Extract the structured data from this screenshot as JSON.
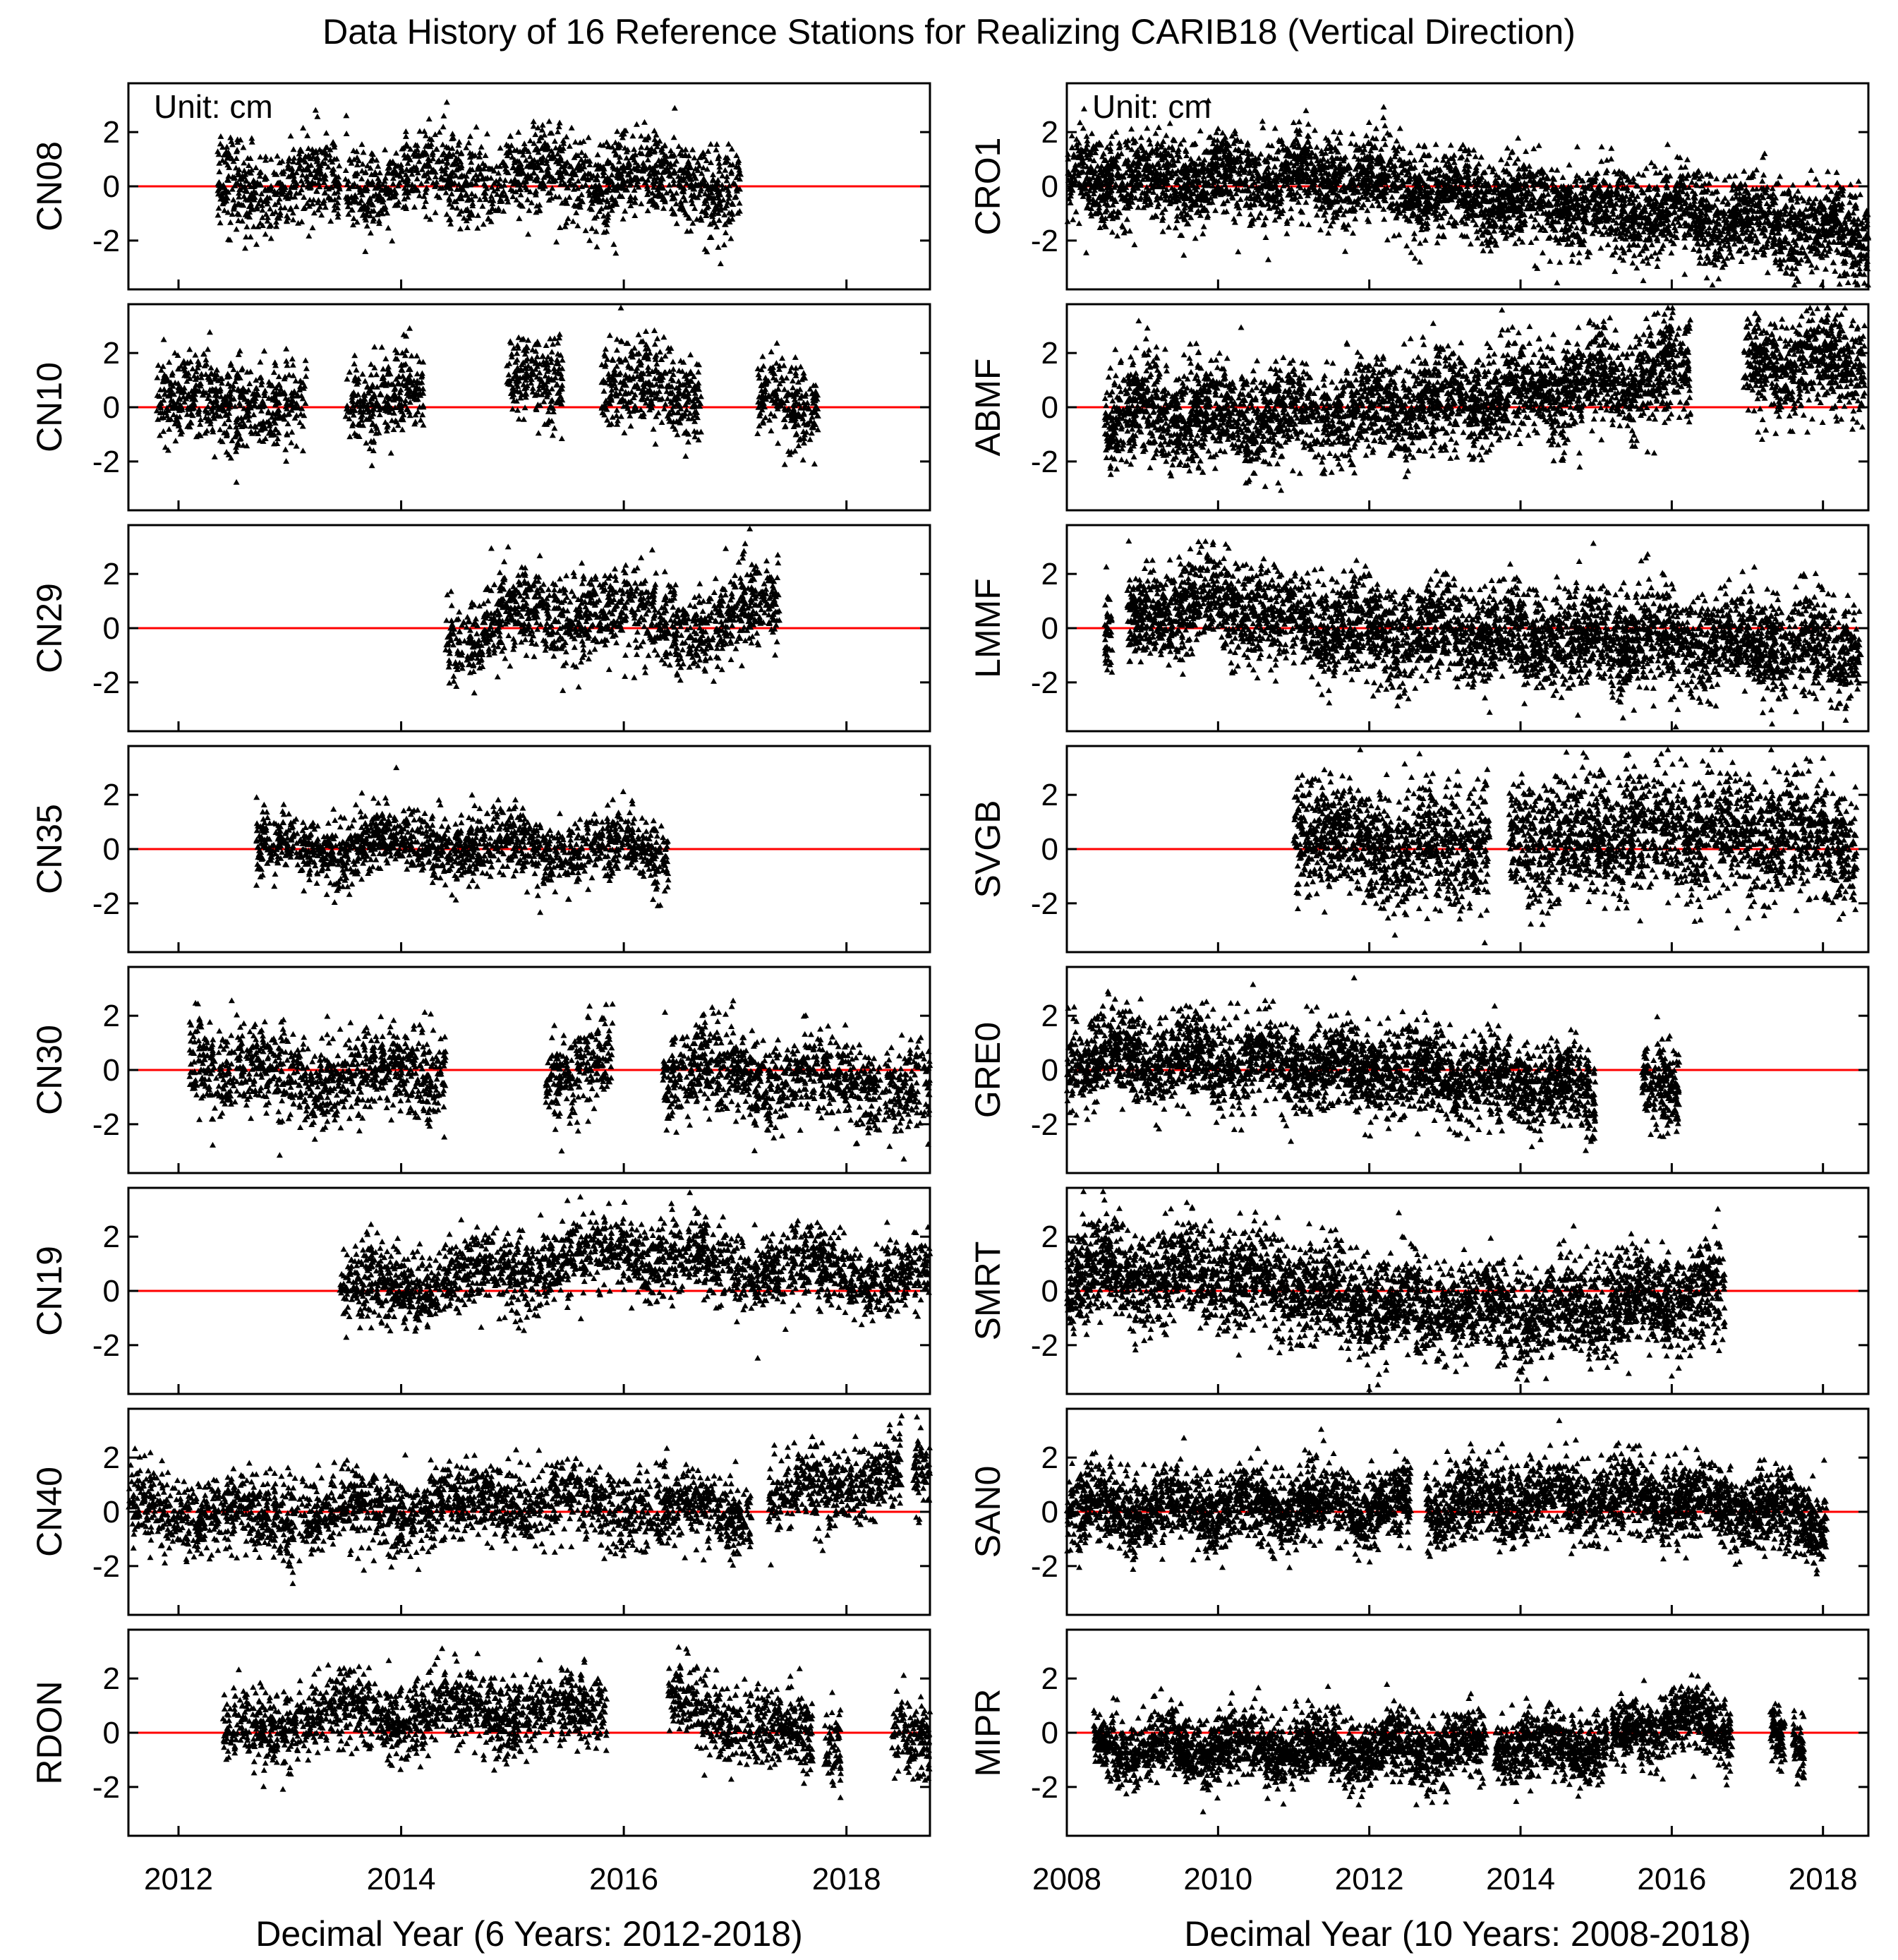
{
  "title": "Data History of 16 Reference Stations for Realizing CARIB18 (Vertical Direction)",
  "chart_data": {
    "type": "scatter",
    "columns": [
      {
        "xlabel": "Decimal Year (6 Years: 2012-2018)",
        "xlim": [
          2011.55,
          2018.75
        ],
        "xticks": [
          2012,
          2014,
          2016,
          2018
        ],
        "panels": [
          {
            "station": "CN08",
            "unit_note": "Unit: cm",
            "segments": [
              [
                2012.35,
                2013.45
              ],
              [
                2013.5,
                2017.05
              ]
            ],
            "mean": [
              [
                2012.3,
                0.0
              ],
              [
                2014.0,
                0.2
              ],
              [
                2016.0,
                0.4
              ],
              [
                2017.0,
                0.0
              ]
            ],
            "spread": 0.8
          },
          {
            "station": "CN10",
            "unit_note": "",
            "segments": [
              [
                2011.8,
                2013.15
              ],
              [
                2013.5,
                2014.2
              ],
              [
                2014.95,
                2015.45
              ],
              [
                2015.8,
                2016.7
              ],
              [
                2017.2,
                2017.75
              ]
            ],
            "mean": [
              [
                2011.8,
                0.3
              ],
              [
                2013.0,
                0.0
              ],
              [
                2015.2,
                0.9
              ],
              [
                2016.4,
                0.7
              ],
              [
                2017.75,
                0.0
              ]
            ],
            "spread": 0.8
          },
          {
            "station": "CN29",
            "unit_note": "",
            "segments": [
              [
                2014.4,
                2017.4
              ]
            ],
            "mean": [
              [
                2014.4,
                -0.5
              ],
              [
                2015.2,
                0.5
              ],
              [
                2016.3,
                0.5
              ],
              [
                2016.8,
                -0.3
              ],
              [
                2017.4,
                1.2
              ]
            ],
            "spread": 0.8
          },
          {
            "station": "CN35",
            "unit_note": "",
            "segments": [
              [
                2012.7,
                2016.4
              ]
            ],
            "mean": [
              [
                2012.7,
                0.0
              ],
              [
                2014.3,
                0.2
              ],
              [
                2016.4,
                -0.1
              ]
            ],
            "spread": 0.6
          },
          {
            "station": "CN30",
            "unit_note": "",
            "segments": [
              [
                2012.1,
                2014.4
              ],
              [
                2015.3,
                2015.9
              ],
              [
                2016.35,
                2018.75
              ]
            ],
            "mean": [
              [
                2012.1,
                0.5
              ],
              [
                2013.0,
                -0.5
              ],
              [
                2014.4,
                0.0
              ],
              [
                2016.5,
                0.0
              ],
              [
                2018.75,
                -0.8
              ]
            ],
            "spread": 0.8
          },
          {
            "station": "CN19",
            "unit_note": "",
            "segments": [
              [
                2013.45,
                2018.75
              ]
            ],
            "mean": [
              [
                2013.45,
                0.0
              ],
              [
                2014.5,
                0.4
              ],
              [
                2016.0,
                1.5
              ],
              [
                2016.8,
                0.9
              ],
              [
                2018.75,
                0.5
              ]
            ],
            "spread": 0.7
          },
          {
            "station": "CN40",
            "unit_note": "",
            "segments": [
              [
                2011.55,
                2017.15
              ],
              [
                2017.3,
                2018.5
              ],
              [
                2018.6,
                2018.75
              ]
            ],
            "mean": [
              [
                2011.55,
                0.2
              ],
              [
                2012.8,
                -0.3
              ],
              [
                2015.0,
                0.4
              ],
              [
                2017.0,
                0.0
              ],
              [
                2018.2,
                1.3
              ]
            ],
            "spread": 0.7
          },
          {
            "station": "RDON",
            "unit_note": "",
            "segments": [
              [
                2012.4,
                2015.85
              ],
              [
                2016.4,
                2017.7
              ],
              [
                2017.8,
                2017.95
              ],
              [
                2018.4,
                2018.75
              ]
            ],
            "mean": [
              [
                2012.4,
                0.0
              ],
              [
                2013.5,
                0.7
              ],
              [
                2015.5,
                0.8
              ],
              [
                2016.5,
                1.0
              ],
              [
                2017.7,
                -0.3
              ],
              [
                2018.75,
                -0.5
              ]
            ],
            "spread": 0.7
          }
        ]
      },
      {
        "xlabel": "Decimal Year (10 Years: 2008-2018)",
        "xlim": [
          2008.0,
          2018.6
        ],
        "xticks": [
          2008,
          2010,
          2012,
          2014,
          2016,
          2018
        ],
        "panels": [
          {
            "station": "CRO1",
            "unit_note": "Unit: cm",
            "segments": [
              [
                2008.0,
                2018.6
              ]
            ],
            "mean": [
              [
                2008.0,
                0.3
              ],
              [
                2011.5,
                0.3
              ],
              [
                2014.0,
                -0.6
              ],
              [
                2017.5,
                -1.4
              ],
              [
                2018.6,
                -1.8
              ]
            ],
            "spread": 0.8
          },
          {
            "station": "ABMF",
            "unit_note": "",
            "segments": [
              [
                2008.5,
                2016.25
              ],
              [
                2016.95,
                2018.55
              ]
            ],
            "mean": [
              [
                2008.5,
                -0.2
              ],
              [
                2011.0,
                -0.4
              ],
              [
                2014.0,
                0.5
              ],
              [
                2016.25,
                1.4
              ],
              [
                2018.55,
                1.7
              ]
            ],
            "spread": 0.9
          },
          {
            "station": "LMMF",
            "unit_note": "",
            "segments": [
              [
                2008.5,
                2008.6
              ],
              [
                2008.8,
                2018.5
              ]
            ],
            "mean": [
              [
                2008.5,
                0.0
              ],
              [
                2009.8,
                1.0
              ],
              [
                2011.5,
                0.0
              ],
              [
                2018.5,
                -0.7
              ]
            ],
            "spread": 0.9
          },
          {
            "station": "SVGB",
            "unit_note": "",
            "segments": [
              [
                2011.0,
                2013.6
              ],
              [
                2013.85,
                2018.45
              ]
            ],
            "mean": [
              [
                2011.0,
                0.8
              ],
              [
                2012.5,
                0.0
              ],
              [
                2015.5,
                0.6
              ],
              [
                2018.45,
                0.3
              ]
            ],
            "spread": 1.1
          },
          {
            "station": "GRE0",
            "unit_note": "",
            "segments": [
              [
                2008.0,
                2015.0
              ],
              [
                2015.6,
                2016.1
              ]
            ],
            "mean": [
              [
                2008.0,
                0.5
              ],
              [
                2010.5,
                0.3
              ],
              [
                2013.0,
                -0.2
              ],
              [
                2015.0,
                -0.9
              ],
              [
                2016.1,
                -0.6
              ]
            ],
            "spread": 0.8
          },
          {
            "station": "SMRT",
            "unit_note": "",
            "segments": [
              [
                2008.0,
                2016.7
              ]
            ],
            "mean": [
              [
                2008.0,
                0.6
              ],
              [
                2010.0,
                0.6
              ],
              [
                2012.0,
                -0.5
              ],
              [
                2014.5,
                -0.8
              ],
              [
                2016.7,
                0.0
              ]
            ],
            "spread": 0.9
          },
          {
            "station": "SAN0",
            "unit_note": "",
            "segments": [
              [
                2008.0,
                2012.55
              ],
              [
                2012.75,
                2018.05
              ]
            ],
            "mean": [
              [
                2008.0,
                0.1
              ],
              [
                2012.5,
                0.2
              ],
              [
                2015.5,
                0.6
              ],
              [
                2018.05,
                -0.3
              ]
            ],
            "spread": 0.7
          },
          {
            "station": "MIPR",
            "unit_note": "",
            "segments": [
              [
                2008.35,
                2013.55
              ],
              [
                2013.65,
                2015.15
              ],
              [
                2015.2,
                2016.8
              ],
              [
                2017.3,
                2017.5
              ],
              [
                2017.6,
                2017.75
              ]
            ],
            "mean": [
              [
                2008.35,
                -0.5
              ],
              [
                2012.0,
                -0.6
              ],
              [
                2015.0,
                -0.5
              ],
              [
                2016.0,
                0.5
              ],
              [
                2017.75,
                -0.5
              ]
            ],
            "spread": 0.6
          }
        ]
      }
    ],
    "ylim": [
      -3.8,
      3.8
    ],
    "yticks": [
      -2,
      0,
      2
    ],
    "reference_line_y": 0,
    "marker_color": "#000000",
    "reference_line_color": "#ff0000"
  }
}
